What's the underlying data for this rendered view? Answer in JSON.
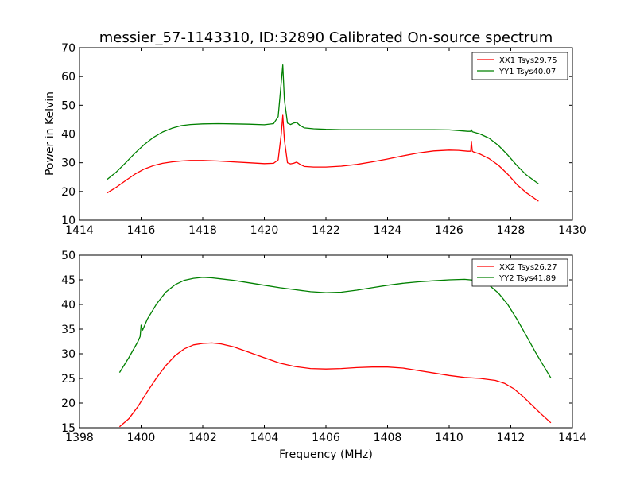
{
  "figure": {
    "title": "messier_57-1143310, ID:32890 Calibrated On-source spectrum",
    "ylabel": "Power in Kelvin",
    "xlabel": "Frequency (MHz)"
  },
  "colors": {
    "xx": "#ff0000",
    "yy": "#008000",
    "axes": "#000000",
    "background": "#ffffff"
  },
  "chart_data": [
    {
      "type": "line",
      "title": "messier_57-1143310, ID:32890 Calibrated On-source spectrum",
      "xlabel": "",
      "ylabel": "Power in Kelvin",
      "xlim": [
        1414,
        1430
      ],
      "ylim": [
        10,
        70
      ],
      "xticks": [
        1414,
        1416,
        1418,
        1420,
        1422,
        1424,
        1426,
        1428,
        1430
      ],
      "yticks": [
        10,
        20,
        30,
        40,
        50,
        60,
        70
      ],
      "grid": false,
      "legend_position": "top-right",
      "series": [
        {
          "name": "XX1 Tsys29.75",
          "color": "#ff0000",
          "x": [
            1414.9,
            1415.2,
            1415.5,
            1415.8,
            1416.1,
            1416.4,
            1416.7,
            1417.0,
            1417.3,
            1417.6,
            1418.0,
            1418.5,
            1419.0,
            1419.5,
            1420.0,
            1420.3,
            1420.45,
            1420.55,
            1420.6,
            1420.65,
            1420.75,
            1420.85,
            1420.95,
            1421.05,
            1421.15,
            1421.3,
            1421.6,
            1422.0,
            1422.5,
            1423.0,
            1423.5,
            1424.0,
            1424.5,
            1425.0,
            1425.5,
            1426.0,
            1426.3,
            1426.6,
            1426.7,
            1426.72,
            1426.75,
            1426.8,
            1427.0,
            1427.3,
            1427.6,
            1427.9,
            1428.2,
            1428.5,
            1428.9
          ],
          "values": [
            19.5,
            21.5,
            23.8,
            26.0,
            27.8,
            29.0,
            29.8,
            30.3,
            30.6,
            30.8,
            30.8,
            30.6,
            30.3,
            30.0,
            29.7,
            29.8,
            31.0,
            40.0,
            46.5,
            38.0,
            30.0,
            29.6,
            29.8,
            30.2,
            29.5,
            28.7,
            28.5,
            28.5,
            28.8,
            29.4,
            30.3,
            31.3,
            32.4,
            33.4,
            34.1,
            34.4,
            34.3,
            34.0,
            34.0,
            37.5,
            34.0,
            33.7,
            33.0,
            31.4,
            29.1,
            26.0,
            22.4,
            19.6,
            16.6
          ]
        },
        {
          "name": "YY1 Tsys40.07",
          "color": "#008000",
          "x": [
            1414.9,
            1415.2,
            1415.5,
            1415.8,
            1416.1,
            1416.4,
            1416.7,
            1417.0,
            1417.3,
            1417.6,
            1418.0,
            1418.5,
            1419.0,
            1419.5,
            1420.0,
            1420.3,
            1420.45,
            1420.55,
            1420.6,
            1420.65,
            1420.75,
            1420.85,
            1420.95,
            1421.05,
            1421.15,
            1421.3,
            1421.6,
            1422.0,
            1422.5,
            1423.0,
            1423.5,
            1424.0,
            1424.5,
            1425.0,
            1425.5,
            1426.0,
            1426.3,
            1426.6,
            1426.7,
            1426.72,
            1426.75,
            1426.8,
            1427.0,
            1427.3,
            1427.6,
            1427.9,
            1428.2,
            1428.5,
            1428.9
          ],
          "values": [
            24.2,
            26.8,
            30.0,
            33.3,
            36.3,
            38.8,
            40.7,
            42.0,
            42.9,
            43.3,
            43.5,
            43.6,
            43.5,
            43.4,
            43.2,
            43.6,
            46.0,
            58.0,
            64.0,
            52.0,
            43.8,
            43.3,
            43.8,
            44.0,
            43.0,
            42.1,
            41.8,
            41.6,
            41.5,
            41.5,
            41.5,
            41.5,
            41.5,
            41.5,
            41.5,
            41.4,
            41.2,
            40.9,
            40.9,
            41.5,
            40.8,
            40.6,
            40.0,
            38.5,
            36.0,
            32.7,
            29.0,
            25.8,
            22.6
          ]
        }
      ]
    },
    {
      "type": "line",
      "title": "",
      "xlabel": "Frequency (MHz)",
      "ylabel": "",
      "xlim": [
        1398,
        1414
      ],
      "ylim": [
        15,
        50
      ],
      "xticks": [
        1398,
        1400,
        1402,
        1404,
        1406,
        1408,
        1410,
        1412,
        1414
      ],
      "yticks": [
        15,
        20,
        25,
        30,
        35,
        40,
        45,
        50
      ],
      "grid": false,
      "legend_position": "top-right",
      "series": [
        {
          "name": "XX2 Tsys26.27",
          "color": "#ff0000",
          "x": [
            1399.3,
            1399.6,
            1399.9,
            1400.2,
            1400.5,
            1400.8,
            1401.1,
            1401.4,
            1401.7,
            1402.0,
            1402.3,
            1402.6,
            1403.0,
            1403.5,
            1404.0,
            1404.5,
            1405.0,
            1405.5,
            1406.0,
            1406.5,
            1407.0,
            1407.5,
            1408.0,
            1408.5,
            1409.0,
            1409.5,
            1410.0,
            1410.5,
            1411.0,
            1411.5,
            1411.8,
            1412.1,
            1412.4,
            1412.7,
            1413.0,
            1413.3
          ],
          "values": [
            15.2,
            16.8,
            19.3,
            22.3,
            25.1,
            27.6,
            29.6,
            31.0,
            31.8,
            32.1,
            32.2,
            32.0,
            31.4,
            30.3,
            29.2,
            28.1,
            27.4,
            27.0,
            26.9,
            27.0,
            27.2,
            27.3,
            27.3,
            27.1,
            26.6,
            26.1,
            25.6,
            25.2,
            25.0,
            24.6,
            24.0,
            22.9,
            21.3,
            19.5,
            17.7,
            16.0
          ]
        },
        {
          "name": "YY2 Tsys41.89",
          "color": "#008000",
          "x": [
            1399.3,
            1399.6,
            1399.9,
            1399.97,
            1400.0,
            1400.05,
            1400.2,
            1400.5,
            1400.8,
            1401.1,
            1401.4,
            1401.7,
            1402.0,
            1402.3,
            1402.6,
            1403.0,
            1403.5,
            1404.0,
            1404.5,
            1405.0,
            1405.5,
            1406.0,
            1406.5,
            1407.0,
            1407.5,
            1408.0,
            1408.5,
            1409.0,
            1409.5,
            1410.0,
            1410.5,
            1411.0,
            1411.3,
            1411.6,
            1411.9,
            1412.2,
            1412.5,
            1412.8,
            1413.1,
            1413.3
          ],
          "values": [
            26.2,
            29.2,
            32.5,
            33.5,
            35.8,
            34.8,
            37.0,
            40.1,
            42.5,
            44.0,
            44.9,
            45.3,
            45.5,
            45.4,
            45.2,
            44.9,
            44.4,
            43.9,
            43.4,
            43.0,
            42.6,
            42.4,
            42.5,
            42.9,
            43.4,
            43.9,
            44.3,
            44.6,
            44.8,
            45.0,
            45.1,
            44.8,
            43.9,
            42.3,
            40.0,
            37.0,
            33.7,
            30.3,
            27.2,
            25.1
          ]
        }
      ]
    }
  ]
}
